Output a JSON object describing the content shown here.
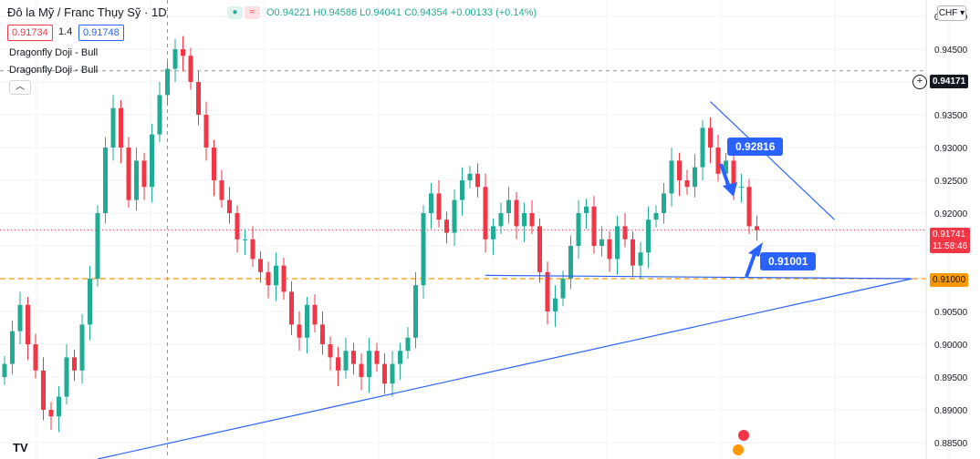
{
  "header": {
    "title": "Đô la Mỹ / Franc Thụy Sỹ · 1D",
    "ohlc_text": "O0.94221 H0.94586 L0.94041 C0.94354 +0.00133 (+0.14%)",
    "sell_price": "0.91734",
    "spread": "1.4",
    "buy_price": "0.91748",
    "currency": "CHF",
    "currency_icon": "chevron-down-icon"
  },
  "indicators": [
    "Dragonfly Doji - Bull",
    "Dragonfly Doji - Bull"
  ],
  "annotations": {
    "resistance_callout": "0.92816",
    "support_callout": "0.91001",
    "crosshair_price": "0.94171",
    "last_price": "0.91741",
    "countdown": "11:58:46",
    "level_price": "0.91000"
  },
  "colors": {
    "up": "#22ab94",
    "down": "#f23645",
    "trendline": "#2962ff",
    "level": "#ff9800",
    "grid": "#f0f3fa"
  },
  "chart_data": {
    "type": "candlestick",
    "interval": "1D",
    "ylim": [
      0.8825,
      0.9525
    ],
    "yticks": [
      0.885,
      0.89,
      0.895,
      0.9,
      0.905,
      0.91,
      0.915,
      0.92,
      0.925,
      0.93,
      0.935,
      0.94,
      0.945,
      0.95
    ],
    "ytick_labels": [
      "0.88500",
      "0.89000",
      "0.89500",
      "0.90000",
      "0.90500",
      "0.91000",
      "",
      "0.92000",
      "0.92500",
      "0.93000",
      "0.93500",
      "0.94000",
      "0.94500",
      "0.95000"
    ],
    "grid": true,
    "closes": [
      0.897,
      0.902,
      0.906,
      0.9,
      0.896,
      0.89,
      0.889,
      0.892,
      0.898,
      0.896,
      0.903,
      0.91,
      0.92,
      0.93,
      0.936,
      0.93,
      0.922,
      0.928,
      0.924,
      0.932,
      0.938,
      0.942,
      0.945,
      0.944,
      0.94,
      0.935,
      0.93,
      0.925,
      0.922,
      0.92,
      0.916,
      0.916,
      0.913,
      0.911,
      0.909,
      0.912,
      0.908,
      0.903,
      0.901,
      0.906,
      0.903,
      0.9,
      0.898,
      0.896,
      0.899,
      0.897,
      0.895,
      0.899,
      0.897,
      0.894,
      0.897,
      0.899,
      0.901,
      0.909,
      0.92,
      0.923,
      0.919,
      0.917,
      0.922,
      0.925,
      0.926,
      0.924,
      0.916,
      0.918,
      0.92,
      0.922,
      0.918,
      0.92,
      0.918,
      0.911,
      0.905,
      0.907,
      0.91,
      0.915,
      0.92,
      0.921,
      0.915,
      0.916,
      0.913,
      0.918,
      0.916,
      0.912,
      0.914,
      0.919,
      0.92,
      0.923,
      0.928,
      0.925,
      0.924,
      0.927,
      0.933,
      0.93,
      0.926,
      0.928,
      0.924,
      0.924,
      0.918,
      0.9174
    ],
    "level": 0.91,
    "level_label": "0.91000",
    "crosshair_level": 0.94171,
    "last_close": 0.91741,
    "resistance_line": {
      "from": [
        91,
        0.937
      ],
      "to": [
        107,
        0.919
      ]
    },
    "support_rising_line": {
      "from": [
        12,
        0.8825
      ],
      "to": [
        117,
        0.91
      ]
    },
    "support_flat_line": {
      "from": [
        62,
        0.9105
      ],
      "to": [
        117,
        0.91
      ]
    },
    "callouts": [
      {
        "label": "0.92816",
        "value": 0.92816
      },
      {
        "label": "0.91001",
        "value": 0.91001
      }
    ]
  }
}
